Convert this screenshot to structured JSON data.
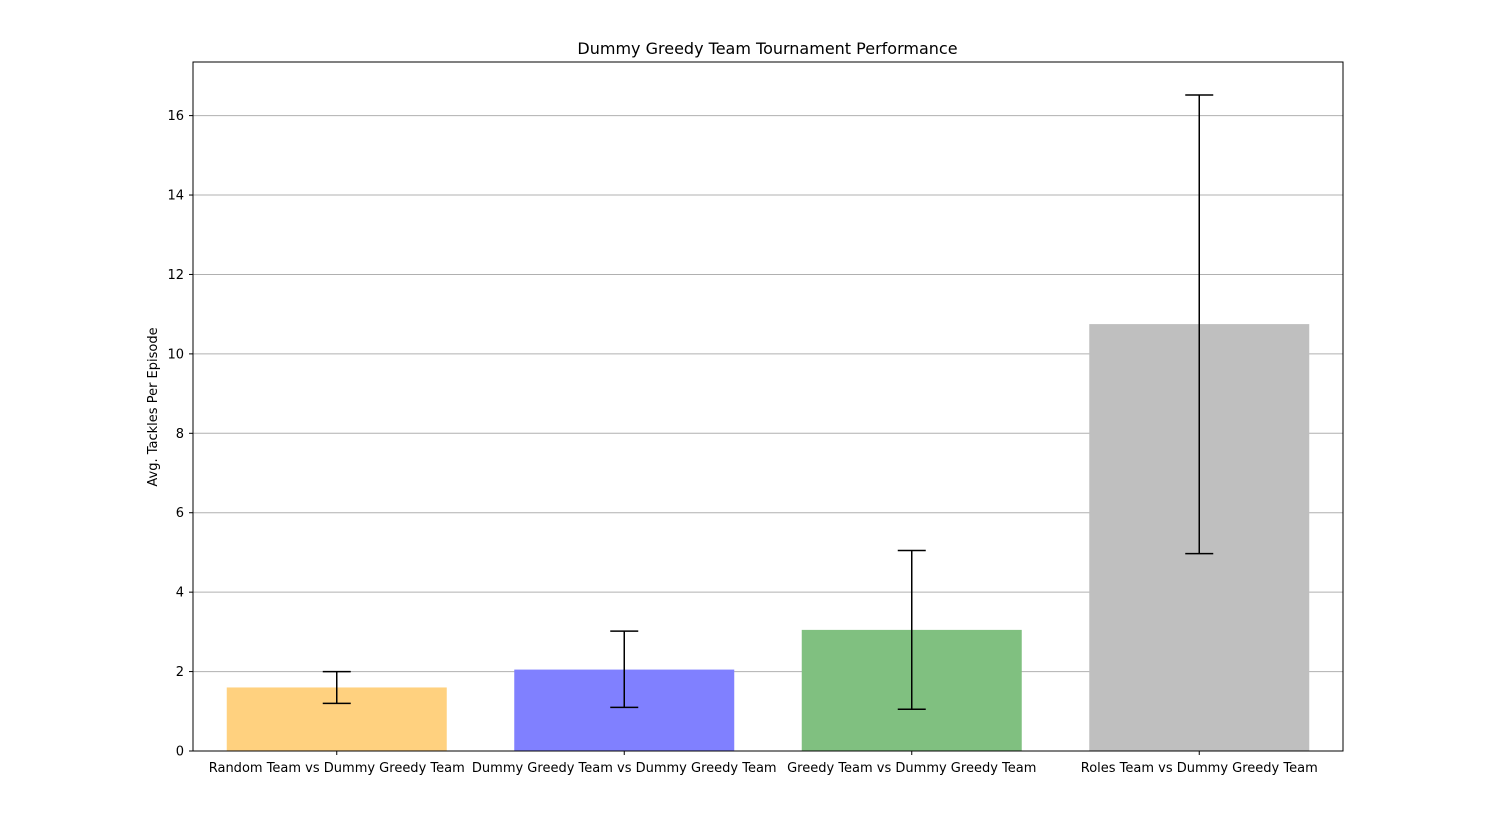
{
  "chart_data": {
    "type": "bar",
    "title": "Dummy Greedy Team Tournament Performance",
    "xlabel": "",
    "ylabel": "Avg. Tackles Per Episode",
    "categories": [
      "Random Team vs Dummy Greedy Team",
      "Dummy Greedy Team vs Dummy Greedy Team",
      "Greedy Team vs Dummy Greedy Team",
      "Roles Team vs Dummy Greedy Team"
    ],
    "values": [
      1.6,
      2.05,
      3.05,
      10.75
    ],
    "error_low": [
      1.2,
      1.1,
      1.05,
      4.97
    ],
    "error_high": [
      2.0,
      3.02,
      5.05,
      16.52
    ],
    "colors": [
      "#ffd17f",
      "#8080ff",
      "#80c080",
      "#bfbfbf"
    ],
    "ylim": [
      0,
      17.35
    ],
    "yticks": [
      0,
      2,
      4,
      6,
      8,
      10,
      12,
      14,
      16
    ],
    "grid": "horizontal",
    "legend": "none"
  }
}
